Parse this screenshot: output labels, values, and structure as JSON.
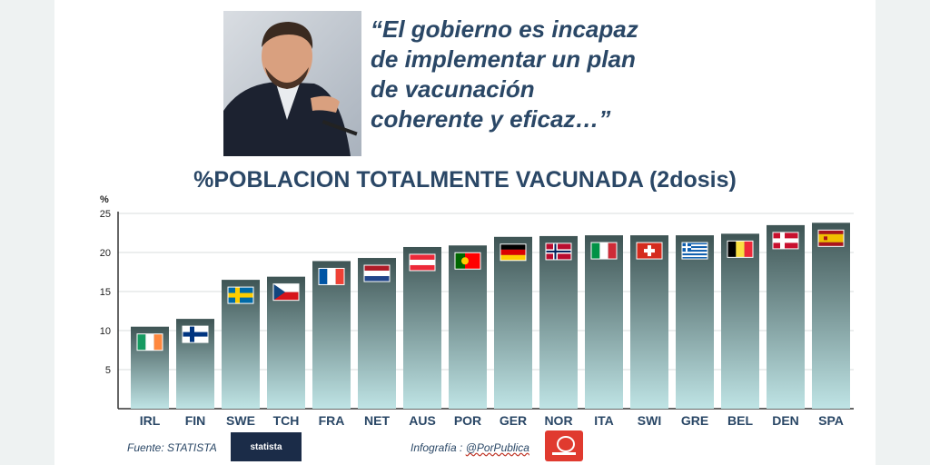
{
  "quote": {
    "lines": [
      "“El gobierno es incapaz",
      "de implementar un plan",
      "de vacunación",
      "coherente y eficaz…”"
    ]
  },
  "footer": {
    "source": "Fuente: STATISTA",
    "statista_logo": "statista",
    "credit_prefix": "Infografía : ",
    "credit_handle": "@PorPublica"
  },
  "chart_data": {
    "type": "bar",
    "title": "%POBLACION TOTALMENTE VACUNADA (2dosis)",
    "ylabel": "%",
    "ylim": [
      0,
      25
    ],
    "yticks": [
      5,
      10,
      15,
      20,
      25
    ],
    "grid": true,
    "categories": [
      "IRL",
      "FIN",
      "SWE",
      "TCH",
      "FRA",
      "NET",
      "AUS",
      "POR",
      "GER",
      "NOR",
      "ITA",
      "SWI",
      "GRE",
      "BEL",
      "DEN",
      "SPA"
    ],
    "values": [
      10.5,
      11.5,
      16.5,
      16.9,
      18.9,
      19.3,
      20.7,
      20.9,
      22.0,
      22.1,
      22.2,
      22.2,
      22.2,
      22.4,
      23.5,
      23.8
    ],
    "flag_icons": [
      "ireland-flag-icon",
      "finland-flag-icon",
      "sweden-flag-icon",
      "czechia-flag-icon",
      "france-flag-icon",
      "netherlands-flag-icon",
      "austria-flag-icon",
      "portugal-flag-icon",
      "germany-flag-icon",
      "norway-flag-icon",
      "italy-flag-icon",
      "switzerland-flag-icon",
      "greece-flag-icon",
      "belgium-flag-icon",
      "denmark-flag-icon",
      "spain-flag-icon"
    ],
    "colors": {
      "bar_top": "#3e5454",
      "bar_bottom": "#bfe4e5",
      "title": "#2a4766"
    }
  }
}
